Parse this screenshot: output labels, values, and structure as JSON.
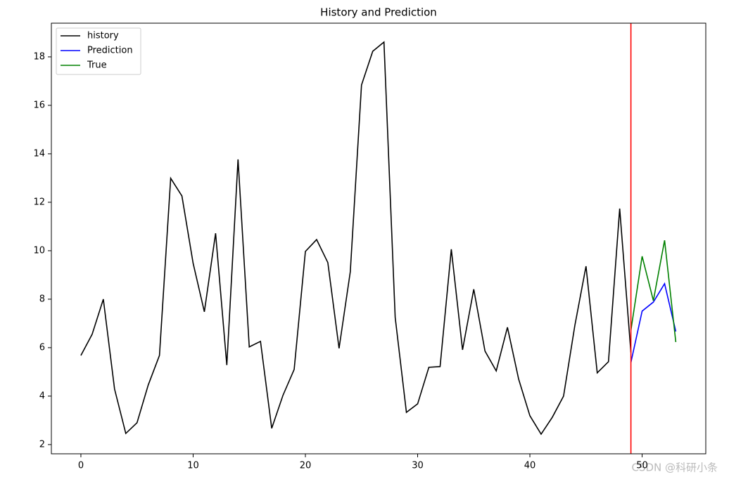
{
  "chart_data": {
    "type": "line",
    "title": "History and Prediction",
    "series": [
      {
        "name": "history",
        "color": "#000000",
        "x": [
          0,
          1,
          2,
          3,
          4,
          5,
          6,
          7,
          8,
          9,
          10,
          11,
          12,
          13,
          14,
          15,
          16,
          17,
          18,
          19,
          20,
          21,
          22,
          23,
          24,
          25,
          26,
          27,
          28,
          29,
          30,
          31,
          32,
          33,
          34,
          35,
          36,
          37,
          38,
          39,
          40,
          41,
          42,
          43,
          44,
          45,
          46,
          47,
          48,
          49
        ],
        "values": [
          5.68,
          6.55,
          8.0,
          4.29,
          2.46,
          2.9,
          4.46,
          5.68,
          12.99,
          12.26,
          9.48,
          7.48,
          10.72,
          5.28,
          13.77,
          6.03,
          6.26,
          2.67,
          4.03,
          5.1,
          9.97,
          10.46,
          9.51,
          5.97,
          9.13,
          16.84,
          18.23,
          18.61,
          7.25,
          3.33,
          3.68,
          5.19,
          5.22,
          10.06,
          5.91,
          8.41,
          5.86,
          5.04,
          6.84,
          4.7,
          3.19,
          2.43,
          3.13,
          4.0,
          6.9,
          9.36,
          4.96,
          5.42,
          11.74,
          5.8
        ]
      },
      {
        "name": "Prediction",
        "color": "#0000ff",
        "x": [
          49,
          50,
          51,
          52,
          53
        ],
        "values": [
          5.39,
          7.51,
          7.88,
          8.64,
          6.67
        ]
      },
      {
        "name": "True",
        "color": "#008000",
        "x": [
          49,
          50,
          51,
          52,
          53
        ],
        "values": [
          6.72,
          9.77,
          7.94,
          10.43,
          6.23
        ]
      }
    ],
    "vline": 49,
    "vline_color": "#ff0000",
    "xlim": [
      -2.63,
      55.67
    ],
    "xticks": [
      0,
      10,
      20,
      30,
      40,
      50
    ],
    "ylim": [
      1.62,
      19.39
    ],
    "yticks": [
      2,
      4,
      6,
      8,
      10,
      12,
      14,
      16,
      18
    ],
    "legend": "upper left",
    "watermark": "CSDN @科研小条"
  }
}
